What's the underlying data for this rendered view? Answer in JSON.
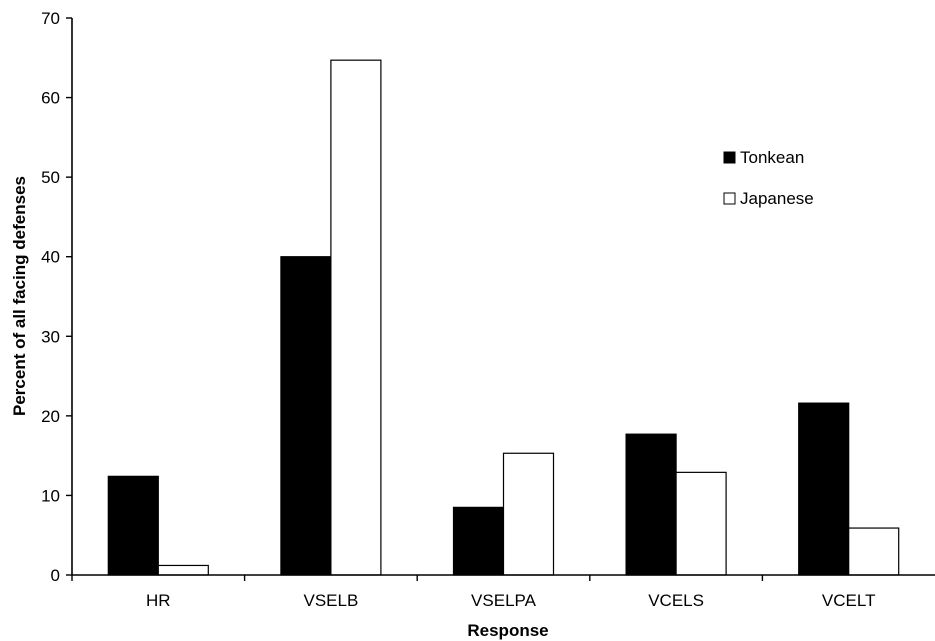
{
  "chart_data": {
    "type": "bar",
    "xlabel": "Response",
    "ylabel": "Percent of all facing defenses",
    "ylim": [
      0,
      70
    ],
    "yticks": [
      "0",
      "10",
      "20",
      "30",
      "40",
      "50",
      "60",
      "70"
    ],
    "categories": [
      "HR",
      "VSELB",
      "VSELPA",
      "VCELS",
      "VCELT"
    ],
    "series": [
      {
        "name": "Tonkean",
        "color": "#000000",
        "values": [
          12.4,
          40.0,
          8.5,
          17.7,
          21.6
        ]
      },
      {
        "name": "Japanese",
        "color": "#ffffff",
        "values": [
          1.2,
          64.7,
          15.3,
          12.9,
          5.9
        ]
      }
    ],
    "legend_position": "top-right",
    "grid": false
  }
}
